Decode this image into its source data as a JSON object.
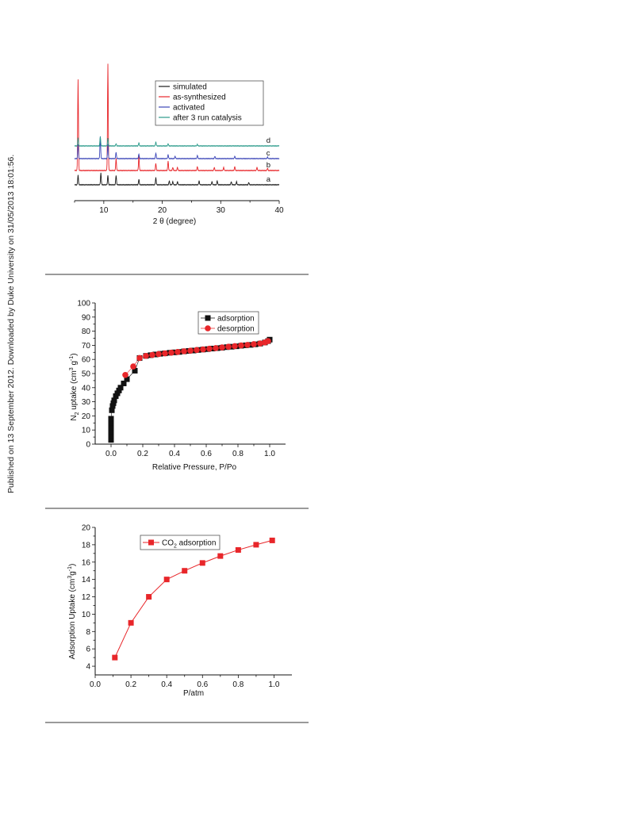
{
  "side_note": "Published on 13 September 2012. Downloaded by Duke University on 31/05/2013 18:01:56.",
  "colors": {
    "black": "#1a1a1a",
    "red": "#e8262a",
    "blue": "#3c46b8",
    "teal": "#2a9a8a",
    "rule": "#9a9a9a"
  },
  "chart_data": [
    {
      "type": "line",
      "xlabel": "2 θ (degree)",
      "ylabel": "",
      "xlim": [
        5,
        40
      ],
      "xticks": [
        "10",
        "20",
        "30",
        "40"
      ],
      "xtick_values": [
        10,
        20,
        30,
        40
      ],
      "legend_position": "top-right",
      "legend": [
        "simulated",
        "as-synthesized",
        "activated",
        "after 3 run catalysis"
      ],
      "curve_labels": [
        "a",
        "b",
        "c",
        "d"
      ],
      "series": [
        {
          "name": "simulated",
          "color": "#1a1a1a",
          "peaks": [
            [
              5.6,
              0.12
            ],
            [
              9.5,
              0.15
            ],
            [
              10.7,
              0.12
            ],
            [
              12.1,
              0.12
            ],
            [
              16.0,
              0.07
            ],
            [
              18.9,
              0.09
            ],
            [
              21.2,
              0.05
            ],
            [
              21.8,
              0.04
            ],
            [
              22.6,
              0.04
            ],
            [
              26.3,
              0.05
            ],
            [
              28.5,
              0.04
            ],
            [
              29.4,
              0.05
            ],
            [
              31.8,
              0.04
            ],
            [
              32.7,
              0.04
            ],
            [
              34.8,
              0.03
            ]
          ]
        },
        {
          "name": "as-synthesized",
          "color": "#e8262a",
          "peaks": [
            [
              5.6,
              1.15
            ],
            [
              10.7,
              1.35
            ],
            [
              12.1,
              0.15
            ],
            [
              16.0,
              0.18
            ],
            [
              18.9,
              0.09
            ],
            [
              21.0,
              0.12
            ],
            [
              21.8,
              0.04
            ],
            [
              22.6,
              0.04
            ],
            [
              26.0,
              0.05
            ],
            [
              28.9,
              0.04
            ],
            [
              30.5,
              0.04
            ],
            [
              32.4,
              0.05
            ],
            [
              36.2,
              0.04
            ],
            [
              38.0,
              0.03
            ]
          ]
        },
        {
          "name": "activated",
          "color": "#3c46b8",
          "peaks": [
            [
              5.6,
              0.18
            ],
            [
              9.4,
              0.28
            ],
            [
              10.7,
              0.18
            ],
            [
              12.1,
              0.08
            ],
            [
              16.0,
              0.06
            ],
            [
              18.9,
              0.07
            ],
            [
              21.0,
              0.05
            ],
            [
              22.2,
              0.03
            ],
            [
              26.0,
              0.04
            ],
            [
              29.0,
              0.03
            ],
            [
              32.4,
              0.03
            ],
            [
              38.0,
              0.02
            ]
          ]
        },
        {
          "name": "after 3 run catalysis",
          "color": "#2a9a8a",
          "peaks": [
            [
              5.6,
              0.1
            ],
            [
              9.4,
              0.12
            ],
            [
              10.7,
              0.1
            ],
            [
              12.1,
              0.03
            ],
            [
              16.0,
              0.04
            ],
            [
              18.9,
              0.05
            ],
            [
              21.0,
              0.03
            ],
            [
              26.0,
              0.02
            ]
          ]
        }
      ]
    },
    {
      "type": "scatter",
      "xlabel": "Relative Pressure, P/Po",
      "ylabel": "N2 uptake (cm3 g-1)",
      "xlim": [
        -0.1,
        1.1
      ],
      "ylim": [
        0,
        100
      ],
      "xticks": [
        "0.0",
        "0.2",
        "0.4",
        "0.6",
        "0.8",
        "1.0"
      ],
      "xtick_values": [
        0,
        0.2,
        0.4,
        0.6,
        0.8,
        1.0
      ],
      "yticks": [
        "0",
        "10",
        "20",
        "30",
        "40",
        "50",
        "60",
        "70",
        "80",
        "90",
        "100"
      ],
      "ytick_values": [
        0,
        10,
        20,
        30,
        40,
        50,
        60,
        70,
        80,
        90,
        100
      ],
      "legend_position": "top-right",
      "series": [
        {
          "name": "adsorption",
          "color": "#111111",
          "marker": "square",
          "x": [
            0.0,
            0.0,
            0.0,
            0.0,
            0.0,
            0.0,
            0.005,
            0.01,
            0.015,
            0.02,
            0.03,
            0.04,
            0.05,
            0.06,
            0.08,
            0.1,
            0.15,
            0.18,
            0.22,
            0.25,
            0.28,
            0.31,
            0.34,
            0.37,
            0.4,
            0.43,
            0.46,
            0.49,
            0.52,
            0.55,
            0.58,
            0.61,
            0.64,
            0.67,
            0.7,
            0.73,
            0.76,
            0.79,
            0.82,
            0.85,
            0.88,
            0.91,
            0.94,
            0.97,
            0.99,
            1.0
          ],
          "y": [
            3,
            6,
            9,
            12,
            15,
            18,
            24,
            27,
            29,
            31,
            34,
            36,
            38,
            40,
            43,
            46,
            52,
            61,
            62.5,
            63,
            63.5,
            64,
            64.3,
            64.7,
            65,
            65.3,
            65.7,
            66,
            66.3,
            66.7,
            67,
            67.3,
            67.7,
            68,
            68.3,
            68.7,
            69,
            69.3,
            69.7,
            70,
            70.3,
            70.7,
            71.2,
            72,
            73,
            74
          ]
        },
        {
          "name": "desorption",
          "color": "#e8262a",
          "marker": "circle",
          "x": [
            0.09,
            0.14,
            0.18,
            0.22,
            0.26,
            0.3,
            0.34,
            0.38,
            0.42,
            0.46,
            0.5,
            0.54,
            0.58,
            0.62,
            0.66,
            0.7,
            0.74,
            0.78,
            0.82,
            0.86,
            0.9,
            0.94,
            0.97,
            0.99
          ],
          "y": [
            49,
            55,
            61,
            62.5,
            63.2,
            63.8,
            64.3,
            64.8,
            65.3,
            65.8,
            66.2,
            66.7,
            67.1,
            67.6,
            68,
            68.5,
            69,
            69.4,
            69.9,
            70.3,
            70.8,
            71.3,
            72,
            73
          ]
        }
      ]
    },
    {
      "type": "line",
      "xlabel": "P/atm",
      "ylabel": "Adsorption Uptake (cm3g-1)",
      "xlim": [
        0.0,
        1.1
      ],
      "ylim": [
        3,
        20
      ],
      "xticks": [
        "0.0",
        "0.2",
        "0.4",
        "0.6",
        "0.8",
        "1.0"
      ],
      "xtick_values": [
        0,
        0.2,
        0.4,
        0.6,
        0.8,
        1.0
      ],
      "yticks": [
        "4",
        "6",
        "8",
        "10",
        "12",
        "14",
        "16",
        "18",
        "20"
      ],
      "ytick_values": [
        4,
        6,
        8,
        10,
        12,
        14,
        16,
        18,
        20
      ],
      "legend_position": "top-center",
      "series": [
        {
          "name": "CO2 adsorption",
          "color": "#e8262a",
          "marker": "square",
          "x": [
            0.11,
            0.2,
            0.3,
            0.4,
            0.5,
            0.6,
            0.7,
            0.8,
            0.9,
            0.99
          ],
          "y": [
            5,
            9,
            12,
            14,
            15,
            15.9,
            16.7,
            17.4,
            18,
            18.5
          ]
        }
      ]
    }
  ]
}
